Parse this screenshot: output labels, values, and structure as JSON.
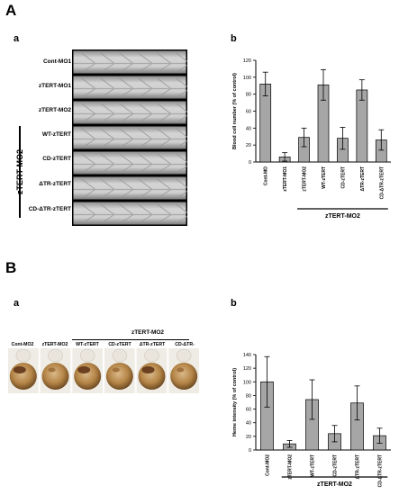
{
  "panels": {
    "A": {
      "letter": "A",
      "a": {
        "letter": "a",
        "strips": [
          "Cont-MO1",
          "zTERT-MO1",
          "zTERT-MO2",
          "WT-zTERT",
          "CD-zTERT",
          "ΔTR-zTERT",
          "CD-ΔTR-zTERT"
        ],
        "group_label": "zTERT-MO2"
      },
      "b": {
        "letter": "b"
      }
    },
    "B": {
      "letter": "B",
      "a": {
        "letter": "a",
        "group_label": "zTERT-MO2",
        "embryos": [
          "Cont-MO2",
          "zTERT-MO2",
          "WT-zTERT",
          "CD-zTERT",
          "ΔTR-zTERT",
          "CD-ΔTR-zTERT"
        ]
      },
      "b": {
        "letter": "b"
      }
    }
  },
  "chart_data": [
    {
      "type": "bar",
      "panel": "A-b",
      "categories": [
        "Cont-MO",
        "zTERT-MO1",
        "zTERT-MO2",
        "WT-zTERT",
        "CD-zTERT",
        "ΔTR-zTERT",
        "CD-ΔTR-zTERT"
      ],
      "values": [
        92,
        6,
        29,
        91,
        28,
        85,
        26
      ],
      "errors": [
        14,
        5,
        11,
        18,
        13,
        12,
        12
      ],
      "ylabel": "Blood cell number (% of control)",
      "ylim": [
        0,
        120
      ],
      "yticks": [
        0,
        20,
        40,
        60,
        80,
        100,
        120
      ],
      "group_label": "zTERT-MO2",
      "group_range": [
        2,
        6
      ],
      "bar_color": "#a6a6a6"
    },
    {
      "type": "bar",
      "panel": "B-b",
      "categories": [
        "Cont-MO2",
        "zTERT-MO2",
        "WT-zTERT",
        "CD-zTERT",
        "ΔTR-zTERT",
        "CD-ΔTR-zTERT"
      ],
      "values": [
        100,
        9,
        74,
        24,
        69,
        21
      ],
      "errors": [
        37,
        5,
        29,
        12,
        25,
        11
      ],
      "ylabel": "Heme intensity (% of control)",
      "ylim": [
        0,
        140
      ],
      "yticks": [
        0,
        20,
        40,
        60,
        80,
        100,
        120,
        140
      ],
      "group_label": "zTERT-MO2",
      "group_range": [
        1,
        5
      ],
      "bar_color": "#a6a6a6"
    }
  ]
}
